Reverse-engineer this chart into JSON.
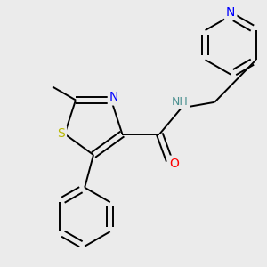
{
  "background_color": "#ebebeb",
  "atom_colors": {
    "S": "#b8b800",
    "N": "#0000ff",
    "O": "#ff0000",
    "NH": "#4a9090",
    "C": "#000000"
  },
  "bond_color": "#000000",
  "bond_lw": 1.4,
  "font_size": 9,
  "figsize": [
    3.0,
    3.0
  ],
  "dpi": 100
}
